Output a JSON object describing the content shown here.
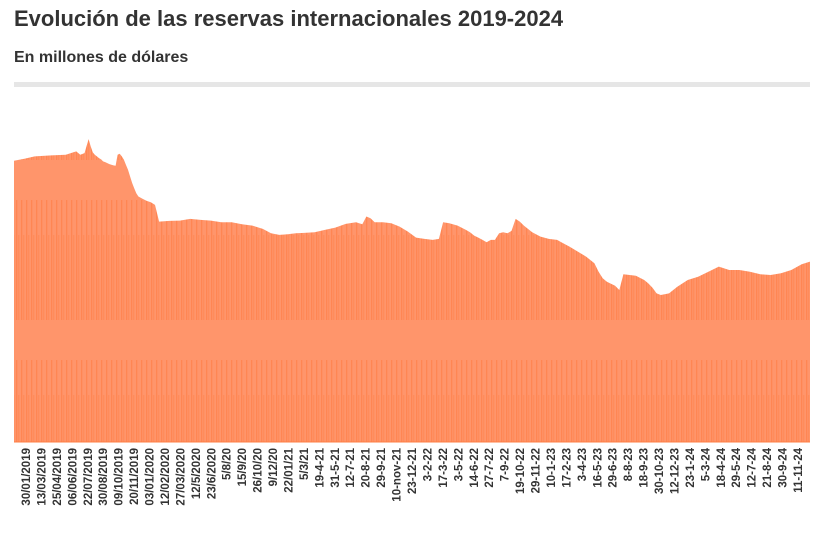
{
  "header": {
    "title": "Evolución de las reservas internacionales 2019-2024",
    "subtitle": "En millones de dólares"
  },
  "colors": {
    "fill": "#ff956b",
    "fill_dark": "#ff7f45",
    "rule": "#e6e6e6",
    "text": "#333333"
  },
  "chart_data": {
    "type": "area",
    "title": "Evolución de las reservas internacionales 2019-2024",
    "subtitle": "En millones de dólares",
    "xlabel": "",
    "ylabel": "",
    "grid": false,
    "legend": "none",
    "tick_labels": [
      "30/01/2019",
      "13/03/2019",
      "25/04/2019",
      "06/06/2019",
      "22/07/2019",
      "30/08/2019",
      "09/10/2019",
      "20/11/2019",
      "03/01/2020",
      "12/02/2020",
      "27/03/2020",
      "12/5/2020",
      "23/6/2020",
      "5/8/20",
      "15/9/20",
      "26/10/20",
      "9/12/20",
      "22/01/21",
      "5/3/21",
      "19-4-21",
      "31-5-21",
      "12-7-21",
      "20-8-21",
      "29-9-21",
      "10-nov-21",
      "23-12-21",
      "3-2-22",
      "17-3-22",
      "3-5-22",
      "14-6-22",
      "27-7-22",
      "7-9-22",
      "19-10-22",
      "29-11-22",
      "10-1-23",
      "17-2-23",
      "3-4-23",
      "16-5-23",
      "29-6-23",
      "8-8-23",
      "18-9-23",
      "30-10-23",
      "12-12-23",
      "23-1-24",
      "5-3-24",
      "18-4-24",
      "29-5-24",
      "12-7-24",
      "21-8-24",
      "30-9-24",
      "11-11-24"
    ],
    "series_points": [
      [
        0,
        84.2
      ],
      [
        5,
        84.8
      ],
      [
        10,
        85.5
      ],
      [
        18,
        85.8
      ],
      [
        25,
        86.0
      ],
      [
        30,
        87.0
      ],
      [
        32,
        86.0
      ],
      [
        34,
        86.5
      ],
      [
        36,
        90.7
      ],
      [
        37,
        88.5
      ],
      [
        38,
        86.7
      ],
      [
        39,
        86.0
      ],
      [
        40,
        85.5
      ],
      [
        41,
        85.0
      ],
      [
        42,
        84.6
      ],
      [
        43,
        84.0
      ],
      [
        44,
        83.8
      ],
      [
        45,
        83.5
      ],
      [
        46,
        83.2
      ],
      [
        47,
        83.0
      ],
      [
        48,
        82.8
      ],
      [
        49,
        82.7
      ],
      [
        50,
        86.0
      ],
      [
        51,
        86.3
      ],
      [
        52,
        85.5
      ],
      [
        53,
        84.5
      ],
      [
        54,
        83.0
      ],
      [
        55,
        81.5
      ],
      [
        56,
        79.5
      ],
      [
        57,
        77.5
      ],
      [
        58,
        76.0
      ],
      [
        59,
        74.5
      ],
      [
        60,
        73.5
      ],
      [
        62,
        72.8
      ],
      [
        64,
        72.2
      ],
      [
        66,
        71.8
      ],
      [
        68,
        71.0
      ],
      [
        70,
        66.0
      ],
      [
        75,
        66.2
      ],
      [
        80,
        66.3
      ],
      [
        85,
        66.8
      ],
      [
        90,
        66.5
      ],
      [
        95,
        66.3
      ],
      [
        100,
        65.8
      ],
      [
        105,
        65.8
      ],
      [
        110,
        65.2
      ],
      [
        115,
        64.8
      ],
      [
        120,
        63.8
      ],
      [
        124,
        62.5
      ],
      [
        128,
        62.0
      ],
      [
        132,
        62.2
      ],
      [
        136,
        62.5
      ],
      [
        140,
        62.6
      ],
      [
        145,
        62.8
      ],
      [
        150,
        63.5
      ],
      [
        155,
        64.2
      ],
      [
        160,
        65.3
      ],
      [
        165,
        65.8
      ],
      [
        168,
        65.2
      ],
      [
        170,
        67.5
      ],
      [
        172,
        67.0
      ],
      [
        174,
        65.8
      ],
      [
        178,
        65.8
      ],
      [
        182,
        65.5
      ],
      [
        186,
        64.5
      ],
      [
        190,
        63.0
      ],
      [
        194,
        61.2
      ],
      [
        198,
        60.8
      ],
      [
        202,
        60.5
      ],
      [
        205,
        60.8
      ],
      [
        207,
        65.8
      ],
      [
        210,
        65.5
      ],
      [
        214,
        64.8
      ],
      [
        218,
        63.5
      ],
      [
        220,
        62.8
      ],
      [
        222,
        61.8
      ],
      [
        224,
        61.2
      ],
      [
        226,
        60.5
      ],
      [
        228,
        59.8
      ],
      [
        230,
        60.5
      ],
      [
        232,
        60.5
      ],
      [
        234,
        62.5
      ],
      [
        236,
        62.8
      ],
      [
        238,
        62.5
      ],
      [
        240,
        63.2
      ],
      [
        242,
        66.8
      ],
      [
        244,
        66.0
      ],
      [
        246,
        64.8
      ],
      [
        250,
        62.8
      ],
      [
        254,
        61.5
      ],
      [
        258,
        60.8
      ],
      [
        262,
        60.5
      ],
      [
        264,
        59.8
      ],
      [
        268,
        58.5
      ],
      [
        272,
        57.0
      ],
      [
        276,
        55.5
      ],
      [
        280,
        53.5
      ],
      [
        282,
        51.0
      ],
      [
        284,
        49.0
      ],
      [
        286,
        48.0
      ],
      [
        290,
        46.8
      ],
      [
        292,
        45.5
      ],
      [
        294,
        50.2
      ],
      [
        300,
        49.8
      ],
      [
        304,
        48.5
      ],
      [
        306,
        47.5
      ],
      [
        308,
        46.2
      ],
      [
        310,
        44.5
      ],
      [
        312,
        44.0
      ],
      [
        316,
        44.5
      ],
      [
        320,
        46.5
      ],
      [
        325,
        48.5
      ],
      [
        330,
        49.5
      ],
      [
        335,
        51.0
      ],
      [
        340,
        52.5
      ],
      [
        345,
        51.5
      ],
      [
        350,
        51.5
      ],
      [
        355,
        51.0
      ],
      [
        360,
        50.2
      ],
      [
        365,
        50.0
      ],
      [
        370,
        50.5
      ],
      [
        375,
        51.5
      ],
      [
        380,
        53.2
      ],
      [
        384,
        54.0
      ]
    ],
    "x_range": [
      0,
      384
    ],
    "ylim": [
      0,
      100
    ]
  }
}
